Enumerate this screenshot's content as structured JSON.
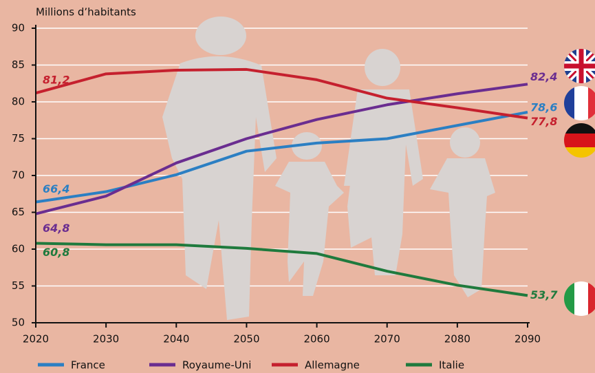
{
  "chart_data": {
    "type": "line",
    "y_label": "Millions d’habitants",
    "x": [
      2020,
      2030,
      2040,
      2050,
      2060,
      2070,
      2080,
      2090
    ],
    "xlim": [
      2020,
      2090
    ],
    "xticks": [
      2020,
      2030,
      2040,
      2050,
      2060,
      2070,
      2080,
      2090
    ],
    "ylim": [
      50,
      90
    ],
    "yticks": [
      50,
      55,
      60,
      65,
      70,
      75,
      80,
      85,
      90
    ],
    "grid": true,
    "series": [
      {
        "name": "France",
        "color": "#2b7fc3",
        "values": [
          66.4,
          67.8,
          70.1,
          73.3,
          74.4,
          75.0,
          76.8,
          78.6
        ],
        "value_labels": [
          "66,4",
          null,
          null,
          null,
          null,
          null,
          null,
          "78,6"
        ]
      },
      {
        "name": "Royaume-Uni",
        "color": "#6a2d90",
        "values": [
          64.8,
          67.2,
          71.7,
          75.0,
          77.6,
          79.6,
          81.1,
          82.4
        ],
        "value_labels": [
          "64,8",
          null,
          null,
          null,
          null,
          null,
          null,
          "82,4"
        ]
      },
      {
        "name": "Allemagne",
        "color": "#c5202e",
        "values": [
          81.2,
          83.8,
          84.3,
          84.4,
          83.0,
          80.5,
          79.2,
          77.8
        ],
        "value_labels": [
          "81,2",
          null,
          null,
          null,
          null,
          null,
          null,
          "77,8"
        ]
      },
      {
        "name": "Italie",
        "color": "#1f7a3d",
        "values": [
          60.8,
          60.6,
          60.6,
          60.1,
          59.4,
          57.0,
          55.1,
          53.7
        ],
        "value_labels": [
          "60,8",
          null,
          null,
          null,
          null,
          null,
          null,
          "53,7"
        ]
      }
    ]
  }
}
